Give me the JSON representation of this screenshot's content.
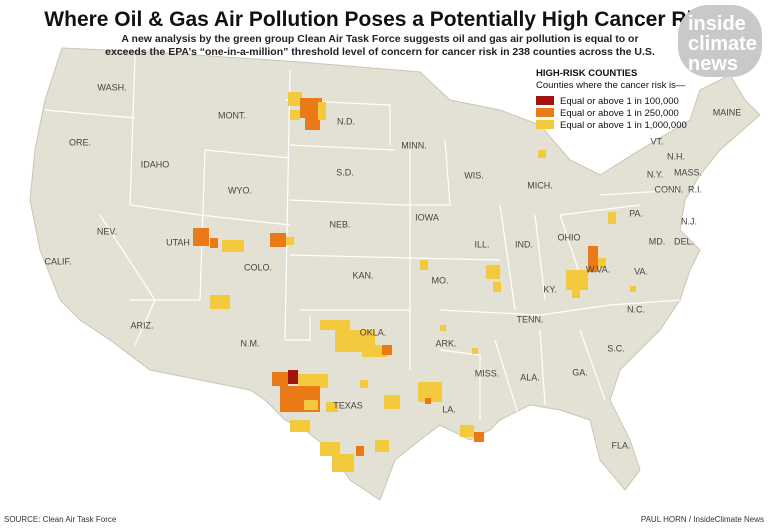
{
  "header": {
    "title": "Where Oil & Gas Air Pollution Poses a Potentially High Cancer Risk",
    "subtitle": [
      "A new analysis by the green group Clean Air Task Force suggests oil and gas air pollution is equal to or",
      "exceeds the EPA’s “one-in-a-million” threshold level of concern for cancer risk in 238 counties across the U.S."
    ]
  },
  "logo": [
    "inside",
    "climate",
    "news"
  ],
  "legend": {
    "title": "HIGH-RISK COUNTIES",
    "subtitle": "Counties where the cancer risk is—",
    "items": [
      {
        "label": "Equal or above 1 in 100,000",
        "color": "#a3140f"
      },
      {
        "label": "Equal or above 1 in 250,000",
        "color": "#ea7a18"
      },
      {
        "label": "Equal or above 1 in 1,000,000",
        "color": "#f3c93d"
      }
    ]
  },
  "states": [
    "WASH.",
    "ORE.",
    "CALIF.",
    "NEV.",
    "IDAHO",
    "MONT.",
    "WYO.",
    "UTAH",
    "COLO.",
    "ARIZ.",
    "N.M.",
    "N.D.",
    "S.D.",
    "NEB.",
    "KAN.",
    "OKLA.",
    "TEXAS",
    "MINN.",
    "IOWA",
    "MO.",
    "ARK.",
    "LA.",
    "WIS.",
    "MICH.",
    "ILL.",
    "IND.",
    "OHIO",
    "KY.",
    "TENN.",
    "MISS.",
    "ALA.",
    "GA.",
    "FLA.",
    "S.C.",
    "N.C.",
    "VA.",
    "W.VA.",
    "PA.",
    "N.Y.",
    "MD.",
    "DEL.",
    "N.J.",
    "CONN.",
    "R.I.",
    "MASS.",
    "N.H.",
    "VT.",
    "MAINE"
  ],
  "footer": {
    "source": "SOURCE: Clean Air Task Force",
    "credit": "PAUL HORN / InsideClimate News"
  }
}
